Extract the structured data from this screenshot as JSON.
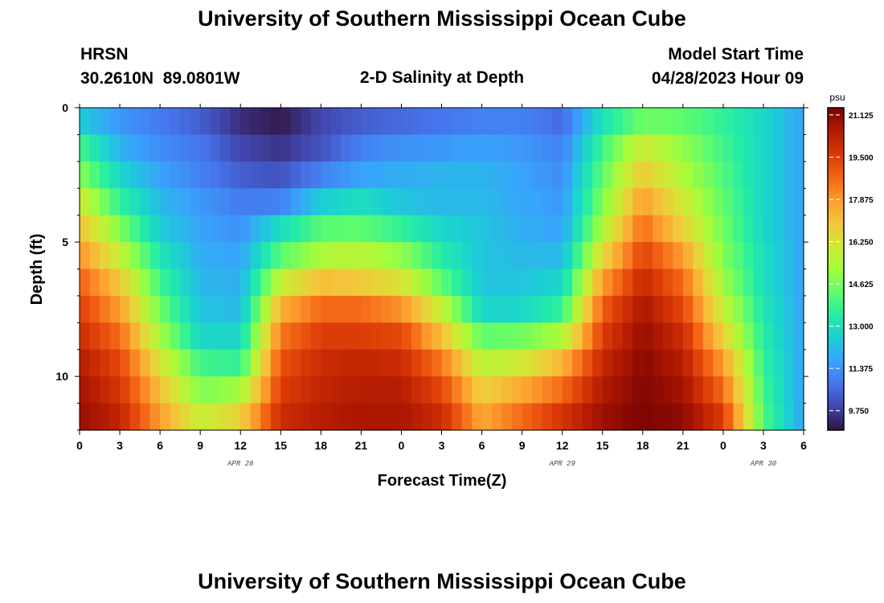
{
  "header": {
    "title": "University of Southern Mississippi Ocean Cube",
    "station": "HRSN",
    "coords": "30.2610N  89.0801W",
    "chart_title": "2-D Salinity at Depth",
    "model_start_label": "Model Start Time",
    "model_start_value": "04/28/2023 Hour 09"
  },
  "footer": {
    "title": "University of Southern Mississippi Ocean Cube"
  },
  "colors": {
    "scale": [
      "#30123b",
      "#4145ab",
      "#4675ed",
      "#39a2fc",
      "#1bcfd4",
      "#24eca6",
      "#61fc6c",
      "#a4fc3b",
      "#d1e834",
      "#f3c63a",
      "#fe9b2d",
      "#f36315",
      "#d93806",
      "#b11901",
      "#7a0403"
    ]
  },
  "chart_data": {
    "type": "heatmap",
    "title": "2-D Salinity at Depth",
    "xlabel": "Forecast Time(Z)",
    "ylabel": "Depth (ft)",
    "units": "psu",
    "x_tick_labels": [
      "0",
      "3",
      "6",
      "9",
      "12",
      "15",
      "18",
      "21",
      "0",
      "3",
      "6",
      "9",
      "12",
      "15",
      "18",
      "21",
      "0",
      "3",
      "6"
    ],
    "x_range_hours": [
      0,
      54
    ],
    "date_labels": [
      {
        "hour": 12,
        "text": "APR 28"
      },
      {
        "hour": 36,
        "text": "APR 29"
      },
      {
        "hour": 51,
        "text": "APR 30"
      }
    ],
    "y_tick_labels": [
      "0",
      "5",
      "10"
    ],
    "y_tick_values": [
      0,
      5,
      10
    ],
    "y_range_ft": [
      0,
      12
    ],
    "colorbar_ticks": [
      "21.125",
      "19.500",
      "17.875",
      "16.250",
      "14.625",
      "13.000",
      "11.375",
      "9.750"
    ],
    "colorbar_values": [
      21.125,
      19.5,
      17.875,
      16.25,
      14.625,
      13.0,
      11.375,
      9.75
    ],
    "color_range": [
      9.75,
      21.125
    ],
    "x_hours": [
      0,
      3,
      6,
      9,
      12,
      15,
      18,
      21,
      24,
      27,
      30,
      33,
      36,
      39,
      42,
      45,
      48,
      51,
      54
    ],
    "depth_levels_ft": [
      0.5,
      1.5,
      2.5,
      3.5,
      4.5,
      5.5,
      6.5,
      7.5,
      8.5,
      9.5,
      10.5,
      11.5
    ],
    "salinity_psu": [
      [
        13.0,
        12.0,
        11.5,
        11.0,
        10.2,
        9.9,
        10.6,
        11.0,
        11.2,
        11.4,
        11.6,
        11.6,
        11.2,
        13.5,
        14.8,
        14.6,
        14.0,
        13.2,
        12.2
      ],
      [
        14.3,
        12.5,
        11.8,
        11.4,
        10.6,
        10.3,
        10.8,
        11.6,
        11.9,
        12.0,
        12.2,
        12.0,
        11.6,
        14.2,
        16.2,
        15.2,
        14.2,
        13.2,
        12.2
      ],
      [
        15.1,
        13.2,
        12.2,
        11.6,
        11.0,
        10.8,
        11.6,
        12.2,
        12.4,
        12.5,
        12.5,
        12.2,
        11.8,
        14.6,
        17.0,
        15.6,
        14.4,
        13.2,
        12.2
      ],
      [
        16.2,
        14.0,
        12.6,
        12.0,
        11.5,
        11.6,
        13.0,
        13.4,
        12.8,
        12.6,
        12.6,
        12.3,
        12.0,
        15.0,
        17.8,
        16.2,
        14.6,
        13.2,
        12.2
      ],
      [
        17.2,
        15.0,
        13.0,
        12.2,
        11.9,
        13.4,
        14.5,
        14.6,
        14.0,
        13.2,
        12.8,
        12.4,
        12.2,
        15.6,
        18.6,
        16.8,
        14.8,
        13.2,
        12.2
      ],
      [
        18.0,
        16.0,
        13.6,
        12.4,
        12.2,
        14.5,
        15.6,
        15.8,
        15.2,
        13.8,
        12.8,
        12.6,
        12.6,
        16.6,
        19.3,
        17.8,
        15.0,
        13.4,
        12.2
      ],
      [
        18.8,
        17.0,
        14.2,
        12.6,
        12.4,
        16.0,
        17.2,
        17.0,
        16.4,
        14.6,
        12.8,
        12.8,
        13.2,
        17.8,
        19.9,
        18.6,
        15.4,
        13.4,
        12.2
      ],
      [
        19.4,
        17.8,
        14.8,
        12.8,
        12.6,
        17.5,
        18.6,
        18.6,
        18.0,
        16.0,
        13.2,
        13.2,
        14.0,
        18.8,
        20.4,
        19.2,
        16.0,
        13.6,
        12.2
      ],
      [
        19.8,
        18.6,
        15.5,
        13.2,
        13.2,
        18.4,
        19.4,
        19.4,
        19.2,
        17.2,
        14.6,
        14.8,
        15.6,
        19.4,
        20.7,
        19.8,
        16.8,
        13.8,
        12.2
      ],
      [
        20.2,
        19.2,
        16.4,
        14.2,
        14.0,
        19.0,
        19.8,
        20.0,
        19.8,
        18.4,
        15.8,
        16.2,
        17.4,
        19.9,
        20.9,
        20.2,
        17.8,
        14.0,
        12.2
      ],
      [
        20.5,
        19.6,
        17.2,
        15.0,
        15.4,
        19.4,
        20.0,
        20.2,
        20.2,
        19.2,
        16.8,
        17.6,
        18.6,
        20.3,
        21.0,
        20.5,
        18.6,
        14.2,
        12.2
      ],
      [
        20.7,
        20.0,
        17.8,
        16.0,
        16.8,
        19.8,
        20.2,
        20.4,
        20.4,
        19.8,
        17.6,
        18.6,
        19.6,
        20.6,
        21.1,
        20.8,
        19.4,
        14.4,
        12.2
      ]
    ]
  }
}
